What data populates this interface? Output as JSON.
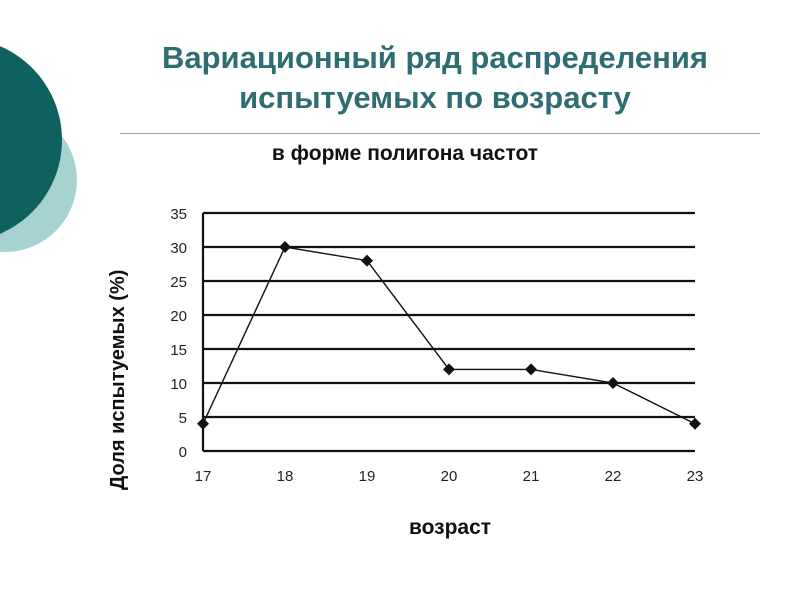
{
  "slide": {
    "title_line1": "Вариационный ряд распределения",
    "title_line2": "испытуемых по возрасту",
    "subtitle": "в форме полигона частот"
  },
  "colors": {
    "title": "#2e6e73",
    "deco_dark": "#0f615d",
    "deco_light": "#a6d3d1",
    "line": "#111111"
  },
  "chart_data": {
    "type": "line",
    "x": [
      17,
      18,
      19,
      20,
      21,
      22,
      23
    ],
    "series": [
      {
        "values": [
          4,
          30,
          28,
          12,
          12,
          10,
          4
        ]
      }
    ],
    "xlabel": "возраст",
    "ylabel": "Доля испытуемых (%)",
    "ylim": [
      0,
      35
    ],
    "yticks": [
      0,
      5,
      10,
      15,
      20,
      25,
      30,
      35
    ],
    "xticks": [
      "17",
      "18",
      "19",
      "20",
      "21",
      "22",
      "23"
    ],
    "grid": true,
    "marker": "diamond"
  }
}
